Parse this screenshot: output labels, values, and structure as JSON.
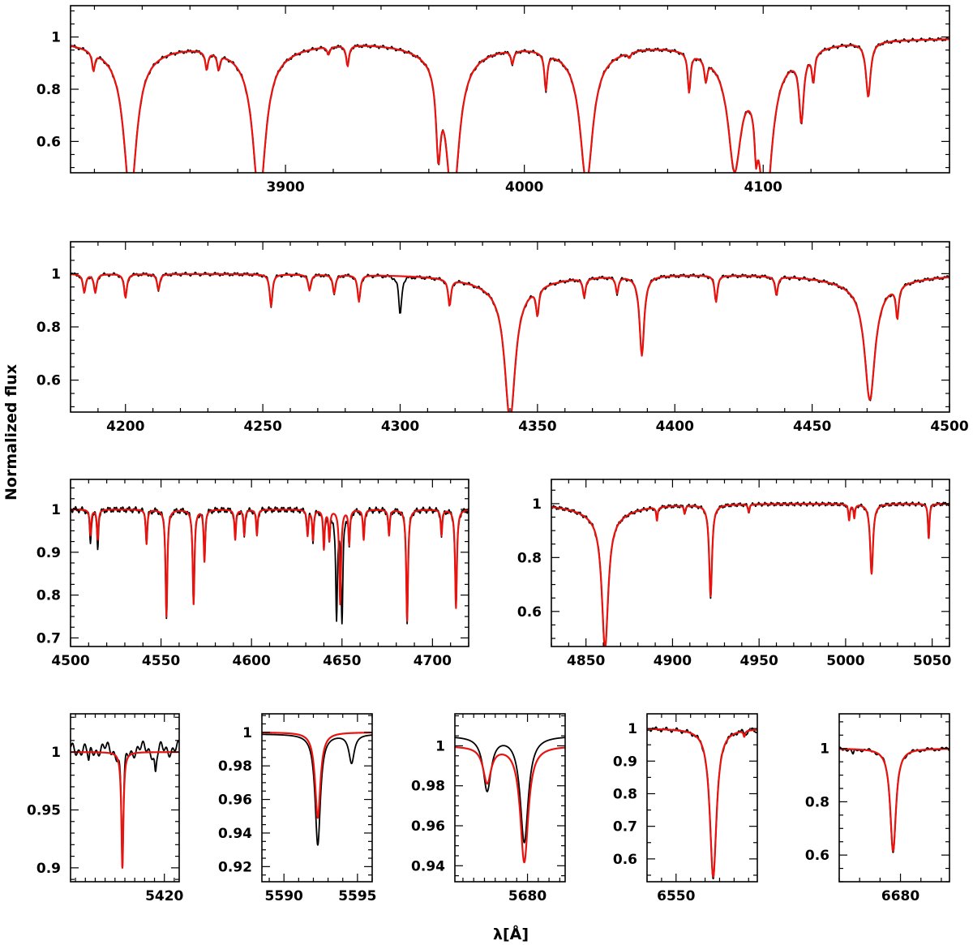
{
  "figure": {
    "ylabel": "Normalized flux",
    "xlabel": "λ[Å]"
  },
  "colors": {
    "observed": "#000000",
    "model": "#e8130f"
  },
  "chart_data": [
    {
      "id": "p1",
      "type": "line",
      "xlim": [
        3810,
        4178
      ],
      "ylim": [
        0.48,
        1.12
      ],
      "xticks_major": [
        3900,
        4000,
        4100
      ],
      "xtick_labels": [
        "3900",
        "4000",
        "4100"
      ],
      "xtick_minor_step": 20,
      "yticks_major": [
        0.6,
        0.8,
        1.0
      ],
      "ytick_labels": [
        "0.6",
        "0.8",
        "1"
      ],
      "ytick_minor_step": 0.05,
      "series": [
        {
          "name": "observed",
          "lines": [
            [
              3819.6,
              0.07
            ],
            [
              3835,
              0.55
            ],
            [
              3867,
              0.07
            ],
            [
              3872,
              0.06
            ],
            [
              3889,
              0.55
            ],
            [
              3918,
              0.03
            ],
            [
              3926,
              0.08
            ],
            [
              3964,
              0.3
            ],
            [
              3970,
              0.56
            ],
            [
              3995,
              0.05
            ],
            [
              4009,
              0.14
            ],
            [
              4026,
              0.49
            ],
            [
              4044,
              0.02
            ],
            [
              4069,
              0.15
            ],
            [
              4076,
              0.08
            ],
            [
              4088,
              0.4
            ],
            [
              4097,
              0.15
            ],
            [
              4101,
              0.55
            ],
            [
              4116,
              0.25
            ],
            [
              4121,
              0.11
            ],
            [
              4144,
              0.21
            ]
          ]
        },
        {
          "name": "model",
          "lines": [
            [
              3819.6,
              0.07
            ],
            [
              3835,
              0.55
            ],
            [
              3867,
              0.07
            ],
            [
              3872,
              0.06
            ],
            [
              3889,
              0.55
            ],
            [
              3918,
              0.03
            ],
            [
              3926,
              0.08
            ],
            [
              3964,
              0.3
            ],
            [
              3970,
              0.56
            ],
            [
              3995,
              0.05
            ],
            [
              4009,
              0.14
            ],
            [
              4026,
              0.49
            ],
            [
              4044,
              0.02
            ],
            [
              4069,
              0.15
            ],
            [
              4076,
              0.08
            ],
            [
              4088,
              0.4
            ],
            [
              4097,
              0.15
            ],
            [
              4101,
              0.55
            ],
            [
              4116,
              0.25
            ],
            [
              4121,
              0.11
            ],
            [
              4144,
              0.21
            ]
          ]
        }
      ]
    },
    {
      "id": "p2",
      "type": "line",
      "xlim": [
        4180,
        4500
      ],
      "ylim": [
        0.48,
        1.12
      ],
      "xticks_major": [
        4200,
        4250,
        4300,
        4350,
        4400,
        4450,
        4500
      ],
      "xtick_labels": [
        "4200",
        "4250",
        "4300",
        "4350",
        "4400",
        "4450",
        "4500"
      ],
      "xtick_minor_step": 10,
      "yticks_major": [
        0.6,
        0.8,
        1.0
      ],
      "ytick_labels": [
        "0.6",
        "0.8",
        "1"
      ],
      "ytick_minor_step": 0.05,
      "series": [
        {
          "name": "observed",
          "lines": [
            [
              4185,
              0.07
            ],
            [
              4189,
              0.07
            ],
            [
              4200,
              0.09
            ],
            [
              4212,
              0.06
            ],
            [
              4253,
              0.12
            ],
            [
              4267,
              0.06
            ],
            [
              4276,
              0.07
            ],
            [
              4285,
              0.1
            ],
            [
              4300,
              0.15
            ],
            [
              4318,
              0.1
            ],
            [
              4340,
              0.5
            ],
            [
              4350,
              0.1
            ],
            [
              4367,
              0.07
            ],
            [
              4379,
              0.06
            ],
            [
              4388,
              0.3
            ],
            [
              4415,
              0.1
            ],
            [
              4437,
              0.07
            ],
            [
              4471,
              0.43
            ],
            [
              4481,
              0.12
            ]
          ]
        },
        {
          "name": "model",
          "lines": [
            [
              4185,
              0.07
            ],
            [
              4189,
              0.07
            ],
            [
              4200,
              0.09
            ],
            [
              4212,
              0.06
            ],
            [
              4253,
              0.12
            ],
            [
              4267,
              0.06
            ],
            [
              4276,
              0.07
            ],
            [
              4285,
              0.1
            ],
            [
              4318,
              0.1
            ],
            [
              4340,
              0.5
            ],
            [
              4350,
              0.1
            ],
            [
              4367,
              0.07
            ],
            [
              4379,
              0.06
            ],
            [
              4388,
              0.3
            ],
            [
              4415,
              0.1
            ],
            [
              4437,
              0.07
            ],
            [
              4471,
              0.43
            ],
            [
              4481,
              0.12
            ]
          ]
        }
      ]
    },
    {
      "id": "p3",
      "type": "line",
      "xlim": [
        4500,
        4720
      ],
      "ylim": [
        0.68,
        1.07
      ],
      "xticks_major": [
        4500,
        4550,
        4600,
        4650,
        4700
      ],
      "xtick_labels": [
        "4500",
        "4550",
        "4600",
        "4650",
        "4700"
      ],
      "xtick_minor_step": 10,
      "yticks_major": [
        0.7,
        0.8,
        0.9,
        1.0
      ],
      "ytick_labels": [
        "0.7",
        "0.8",
        "0.9",
        "1"
      ],
      "ytick_minor_step": 0.025,
      "series": [
        {
          "name": "observed",
          "lines": [
            [
              4511,
              0.08
            ],
            [
              4515,
              0.09
            ],
            [
              4542,
              0.08
            ],
            [
              4553,
              0.25
            ],
            [
              4568,
              0.22
            ],
            [
              4574,
              0.12
            ],
            [
              4591,
              0.07
            ],
            [
              4596,
              0.06
            ],
            [
              4603,
              0.06
            ],
            [
              4631,
              0.06
            ],
            [
              4634,
              0.07
            ],
            [
              4640,
              0.09
            ],
            [
              4643,
              0.07
            ],
            [
              4647,
              0.25
            ],
            [
              4650,
              0.26
            ],
            [
              4654,
              0.08
            ],
            [
              4662,
              0.07
            ],
            [
              4676,
              0.06
            ],
            [
              4686,
              0.26
            ],
            [
              4705,
              0.06
            ],
            [
              4713,
              0.23
            ]
          ]
        },
        {
          "name": "model",
          "lines": [
            [
              4511,
              0.06
            ],
            [
              4515,
              0.07
            ],
            [
              4542,
              0.08
            ],
            [
              4553,
              0.25
            ],
            [
              4568,
              0.22
            ],
            [
              4574,
              0.12
            ],
            [
              4591,
              0.07
            ],
            [
              4596,
              0.06
            ],
            [
              4603,
              0.06
            ],
            [
              4631,
              0.06
            ],
            [
              4634,
              0.07
            ],
            [
              4640,
              0.09
            ],
            [
              4643,
              0.07
            ],
            [
              4649,
              0.22
            ],
            [
              4654,
              0.08
            ],
            [
              4662,
              0.07
            ],
            [
              4676,
              0.06
            ],
            [
              4686,
              0.26
            ],
            [
              4705,
              0.06
            ],
            [
              4713,
              0.23
            ]
          ]
        }
      ]
    },
    {
      "id": "p4",
      "type": "line",
      "xlim": [
        4830,
        5060
      ],
      "ylim": [
        0.47,
        1.09
      ],
      "xticks_major": [
        4850,
        4900,
        4950,
        5000,
        5050
      ],
      "xtick_labels": [
        "4850",
        "4900",
        "4950",
        "5000",
        "5050"
      ],
      "xtick_minor_step": 10,
      "yticks_major": [
        0.6,
        0.8,
        1.0
      ],
      "ytick_labels": [
        "0.6",
        "0.8",
        "1"
      ],
      "ytick_minor_step": 0.05,
      "series": [
        {
          "name": "observed",
          "lines": [
            [
              4861,
              0.49
            ],
            [
              4891,
              0.05
            ],
            [
              4907,
              0.03
            ],
            [
              4922,
              0.34
            ],
            [
              4944,
              0.03
            ],
            [
              5002,
              0.06
            ],
            [
              5005,
              0.05
            ],
            [
              5015,
              0.26
            ],
            [
              5048,
              0.13
            ]
          ]
        },
        {
          "name": "model",
          "lines": [
            [
              4861,
              0.49
            ],
            [
              4891,
              0.05
            ],
            [
              4907,
              0.03
            ],
            [
              4922,
              0.34
            ],
            [
              4944,
              0.03
            ],
            [
              5002,
              0.06
            ],
            [
              5005,
              0.05
            ],
            [
              5015,
              0.26
            ],
            [
              5048,
              0.13
            ]
          ]
        }
      ]
    },
    {
      "id": "p5",
      "type": "line",
      "xlim": [
        5401,
        5423
      ],
      "ylim": [
        0.888,
        1.033
      ],
      "xticks_major": [
        5420
      ],
      "xtick_labels": [
        "5420"
      ],
      "xtick_minor_step": 2,
      "yticks_major": [
        0.9,
        0.95,
        1.0
      ],
      "ytick_labels": [
        "0.9",
        "0.95",
        "1"
      ],
      "ytick_minor_step": 0.01,
      "series": [
        {
          "name": "observed",
          "continuum": 1.003,
          "lines": [
            [
              5404.7,
              0.013
            ],
            [
              5411.5,
              0.103
            ],
            [
              5418.2,
              0.021
            ]
          ]
        },
        {
          "name": "model",
          "continuum": 1.0,
          "lines": [
            [
              5411.5,
              0.1
            ]
          ]
        }
      ]
    },
    {
      "id": "p6",
      "type": "line",
      "xlim": [
        5588.5,
        5596
      ],
      "ylim": [
        0.911,
        1.011
      ],
      "xticks_major": [
        5590,
        5595
      ],
      "xtick_labels": [
        "5590",
        "5595"
      ],
      "xtick_minor_step": 1,
      "yticks_major": [
        0.92,
        0.94,
        0.96,
        0.98,
        1.0
      ],
      "ytick_labels": [
        "0.92",
        "0.94",
        "0.96",
        "0.98",
        "1"
      ],
      "ytick_minor_step": 0.005,
      "series": [
        {
          "name": "observed",
          "continuum": 0.999,
          "lines": [
            [
              5592.3,
              0.066
            ],
            [
              5594.6,
              0.017
            ]
          ]
        },
        {
          "name": "model",
          "continuum": 1.0,
          "lines": [
            [
              5592.3,
              0.051
            ]
          ]
        }
      ]
    },
    {
      "id": "p7",
      "type": "line",
      "xlim": [
        5666.5,
        5687
      ],
      "ylim": [
        0.932,
        1.016
      ],
      "xticks_major": [
        5680
      ],
      "xtick_labels": [
        "5680"
      ],
      "xtick_minor_step": 2,
      "yticks_major": [
        0.94,
        0.96,
        0.98,
        1.0
      ],
      "ytick_labels": [
        "0.94",
        "0.96",
        "0.98",
        "1"
      ],
      "ytick_minor_step": 0.005,
      "series": [
        {
          "name": "observed",
          "continuum": 1.005,
          "lines": [
            [
              5672.5,
              0.027
            ],
            [
              5679.4,
              0.053
            ]
          ]
        },
        {
          "name": "model",
          "continuum": 1.0,
          "lines": [
            [
              5672.5,
              0.018
            ],
            [
              5679.4,
              0.058
            ]
          ]
        }
      ]
    },
    {
      "id": "p8",
      "type": "line",
      "xlim": [
        6540,
        6578
      ],
      "ylim": [
        0.53,
        1.045
      ],
      "xticks_major": [
        6550
      ],
      "xtick_labels": [
        "6550"
      ],
      "xtick_minor_step": 5,
      "yticks_major": [
        0.6,
        0.7,
        0.8,
        0.9,
        1.0
      ],
      "ytick_labels": [
        "0.6",
        "0.7",
        "0.8",
        "0.9",
        "1"
      ],
      "ytick_minor_step": 0.05,
      "series": [
        {
          "name": "observed",
          "continuum": 1.0,
          "lines": [
            [
              6562.8,
              0.455
            ],
            [
              6574,
              0.012
            ],
            [
              6577.5,
              0.008
            ]
          ]
        },
        {
          "name": "model",
          "continuum": 1.0,
          "lines": [
            [
              6562.8,
              0.455
            ],
            [
              6573.5,
              0.018
            ]
          ]
        }
      ]
    },
    {
      "id": "p9",
      "type": "line",
      "xlim": [
        6665,
        6692
      ],
      "ylim": [
        0.5,
        1.13
      ],
      "xticks_major": [
        6680
      ],
      "xtick_labels": [
        "6680"
      ],
      "xtick_minor_step": 5,
      "yticks_major": [
        0.6,
        0.8,
        1.0
      ],
      "ytick_labels": [
        "0.6",
        "0.8",
        "1"
      ],
      "ytick_minor_step": 0.05,
      "series": [
        {
          "name": "observed",
          "continuum": 1.0,
          "lines": [
            [
              6678.2,
              0.39
            ],
            [
              6668.4,
              0.02
            ]
          ]
        },
        {
          "name": "model",
          "continuum": 1.0,
          "lines": [
            [
              6678.2,
              0.385
            ]
          ]
        }
      ]
    }
  ]
}
